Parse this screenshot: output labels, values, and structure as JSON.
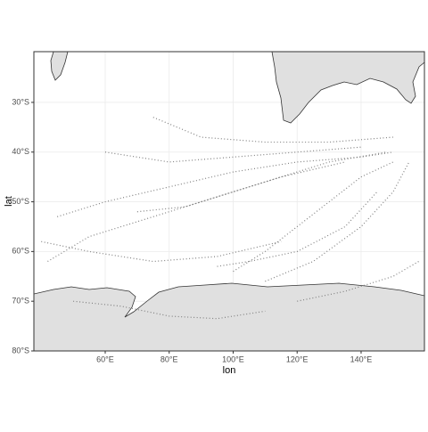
{
  "chart_data": {
    "type": "map",
    "x_label": "lon",
    "y_label": "lat",
    "xlim": [
      37.7,
      159.8
    ],
    "ylim": [
      -80,
      -19.8
    ],
    "xticks": [
      {
        "value": 60,
        "label": "60°E"
      },
      {
        "value": 80,
        "label": "80°E"
      },
      {
        "value": 100,
        "label": "100°E"
      },
      {
        "value": 120,
        "label": "120°E"
      },
      {
        "value": 140,
        "label": "140°E"
      }
    ],
    "yticks": [
      {
        "value": -30,
        "label": "30°S"
      },
      {
        "value": -40,
        "label": "40°S"
      },
      {
        "value": -50,
        "label": "50°S"
      },
      {
        "value": -60,
        "label": "60°S"
      },
      {
        "value": -70,
        "label": "70°S"
      },
      {
        "value": -80,
        "label": "80°S"
      }
    ],
    "grid": true,
    "color": "#808080",
    "tracks": [
      {
        "lon": [
          45,
          60,
          80,
          100,
          120,
          140,
          150
        ],
        "lat": [
          -53,
          -50,
          -47,
          -44,
          -42,
          -41,
          -40
        ]
      },
      {
        "lon": [
          42,
          55,
          70,
          90,
          110,
          130,
          148
        ],
        "lat": [
          -62,
          -57,
          -54,
          -50,
          -46,
          -42,
          -40
        ]
      },
      {
        "lon": [
          60,
          80,
          100,
          120,
          140
        ],
        "lat": [
          -40,
          -42,
          -41,
          -40,
          -39
        ]
      },
      {
        "lon": [
          70,
          85,
          100,
          115,
          135
        ],
        "lat": [
          -52,
          -51,
          -48,
          -45,
          -42
        ]
      },
      {
        "lon": [
          100,
          110,
          120,
          130,
          140,
          150
        ],
        "lat": [
          -64,
          -60,
          -55,
          -50,
          -45,
          -42
        ]
      },
      {
        "lon": [
          95,
          105,
          120,
          135,
          145
        ],
        "lat": [
          -63,
          -62,
          -60,
          -55,
          -48
        ]
      },
      {
        "lon": [
          110,
          125,
          140,
          150,
          155
        ],
        "lat": [
          -66,
          -62,
          -55,
          -48,
          -42
        ]
      },
      {
        "lon": [
          75,
          90,
          110,
          130,
          150
        ],
        "lat": [
          -33,
          -37,
          -38,
          -38,
          -37
        ]
      },
      {
        "lon": [
          40,
          55,
          75,
          95,
          115
        ],
        "lat": [
          -58,
          -60,
          -62,
          -61,
          -58
        ]
      },
      {
        "lon": [
          120,
          135,
          150,
          158
        ],
        "lat": [
          -70,
          -68,
          -65,
          -62
        ]
      },
      {
        "lon": [
          50,
          65,
          80,
          95,
          110
        ],
        "lat": [
          -70,
          -71,
          -73,
          -73.5,
          -72
        ]
      }
    ]
  }
}
